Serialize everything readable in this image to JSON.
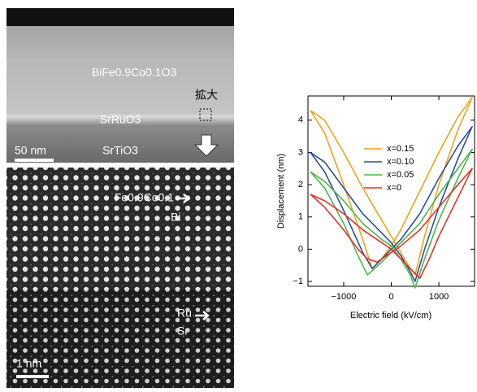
{
  "images": {
    "top": {
      "film": "BiFe0.9Co0.1O3",
      "zoom": "拡大",
      "electrode": "SrRuO3",
      "substrate": "SrTiO3",
      "scale": "50 nm"
    },
    "bottom": {
      "upper_site": "Fe0.9Co0.1",
      "upper_a": "Bi",
      "lower_site": "Ru",
      "lower_a": "Sr",
      "scale": "1 nm"
    }
  },
  "chart_data": {
    "type": "line",
    "xlabel": "Electric field (kV/cm)",
    "ylabel": "Displacement (nm)",
    "xlim": [
      -1750,
      1750
    ],
    "ylim": [
      -1.15,
      4.75
    ],
    "xticks": [
      {
        "value": -1000,
        "label": "−1000"
      },
      0,
      1000
    ],
    "yticks": [
      {
        "value": -1,
        "label": "−1"
      },
      0,
      1,
      2,
      3,
      4
    ],
    "legend": "upper right",
    "series": [
      {
        "name": "x=0.15",
        "color": "#f7a11a",
        "x": [
          -1700,
          -1400,
          -1000,
          -600,
          -200,
          0,
          200,
          400,
          500,
          700,
          1000,
          1400,
          1700,
          1400,
          1000,
          600,
          200,
          0,
          -200,
          -400,
          -600,
          -1000,
          -1400,
          -1700
        ],
        "values": [
          4.3,
          4.0,
          3.0,
          1.9,
          0.9,
          0.4,
          -0.1,
          -0.6,
          -0.8,
          0.4,
          2.0,
          3.7,
          4.7,
          4.1,
          3.0,
          1.8,
          0.6,
          0.1,
          -0.3,
          -0.6,
          0.3,
          2.0,
          3.6,
          4.3
        ]
      },
      {
        "name": "x=0.10",
        "color": "#2a4ea0",
        "x": [
          -1700,
          -1400,
          -1000,
          -600,
          -200,
          0,
          200,
          400,
          500,
          700,
          1000,
          1400,
          1700,
          1400,
          1000,
          600,
          200,
          0,
          -200,
          -400,
          -600,
          -1000,
          -1400,
          -1700
        ],
        "values": [
          3.0,
          2.7,
          1.9,
          1.1,
          0.5,
          0.2,
          -0.2,
          -0.7,
          -1.0,
          0.0,
          1.3,
          2.8,
          3.8,
          3.2,
          2.2,
          1.1,
          0.3,
          0.0,
          -0.3,
          -0.6,
          -0.1,
          1.2,
          2.4,
          3.0
        ]
      },
      {
        "name": "x=0.05",
        "color": "#4cb848",
        "x": [
          -1700,
          -1400,
          -1000,
          -600,
          -200,
          0,
          200,
          400,
          500,
          700,
          1000,
          1400,
          1700,
          1400,
          1000,
          600,
          200,
          0,
          -200,
          -500,
          -700,
          -1000,
          -1400,
          -1700
        ],
        "values": [
          2.4,
          2.1,
          1.5,
          0.8,
          0.3,
          0.1,
          -0.3,
          -0.8,
          -1.2,
          -0.3,
          0.9,
          2.2,
          3.1,
          2.5,
          1.7,
          0.8,
          0.2,
          -0.1,
          -0.4,
          -0.8,
          -0.2,
          0.8,
          1.9,
          2.4
        ]
      },
      {
        "name": "x=0",
        "color": "#e8312a",
        "x": [
          -1700,
          -1400,
          -1000,
          -600,
          -200,
          0,
          200,
          400,
          600,
          800,
          1000,
          1400,
          1700,
          1400,
          1000,
          600,
          200,
          0,
          -300,
          -500,
          -700,
          -1000,
          -1400,
          -1700
        ],
        "values": [
          1.7,
          1.5,
          1.1,
          0.6,
          0.2,
          0.0,
          -0.3,
          -0.6,
          -0.9,
          -0.3,
          0.4,
          1.6,
          2.5,
          2.0,
          1.3,
          0.6,
          0.1,
          -0.1,
          -0.4,
          -0.3,
          0.0,
          0.6,
          1.3,
          1.7
        ]
      }
    ]
  }
}
